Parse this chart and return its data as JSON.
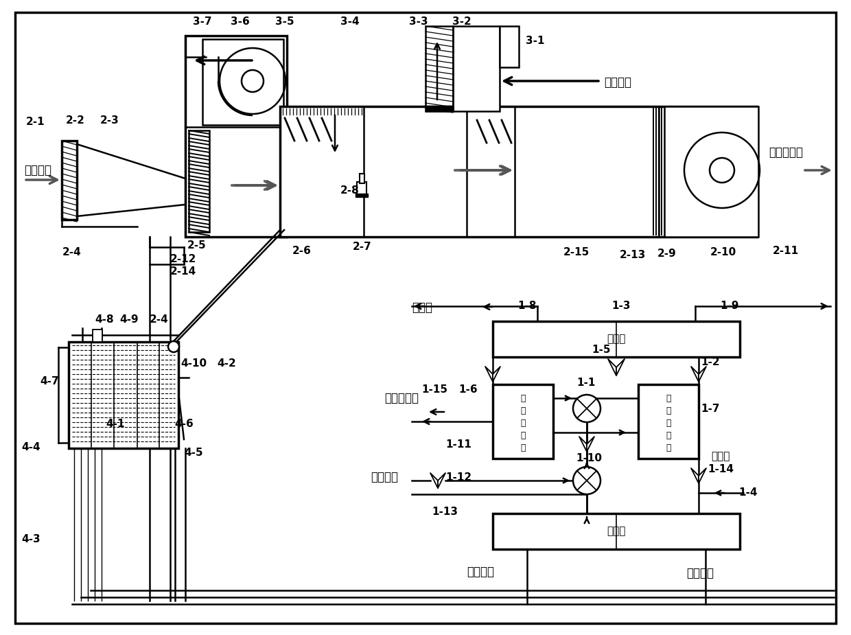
{
  "bg_color": "#ffffff",
  "lw": 1.8,
  "lw_thick": 2.5,
  "labels_outdoor": "室外新风",
  "labels_indoor": "室内回风",
  "labels_processed": "处理后新风",
  "labels_cool_water": "冷却水",
  "labels_waste_water": "冷却后废水",
  "labels_waste_heat": "废热水源",
  "labels_chilled_return": "冷冻回水",
  "labels_chilled_supply": "冷冻供水",
  "labels_condenser": "冷凝器",
  "labels_evaporator": "蒸发器",
  "labels_abs1": [
    "第",
    "一",
    "吸",
    "收",
    "床"
  ],
  "labels_abs2": [
    "第",
    "二",
    "吸",
    "收",
    "床"
  ]
}
